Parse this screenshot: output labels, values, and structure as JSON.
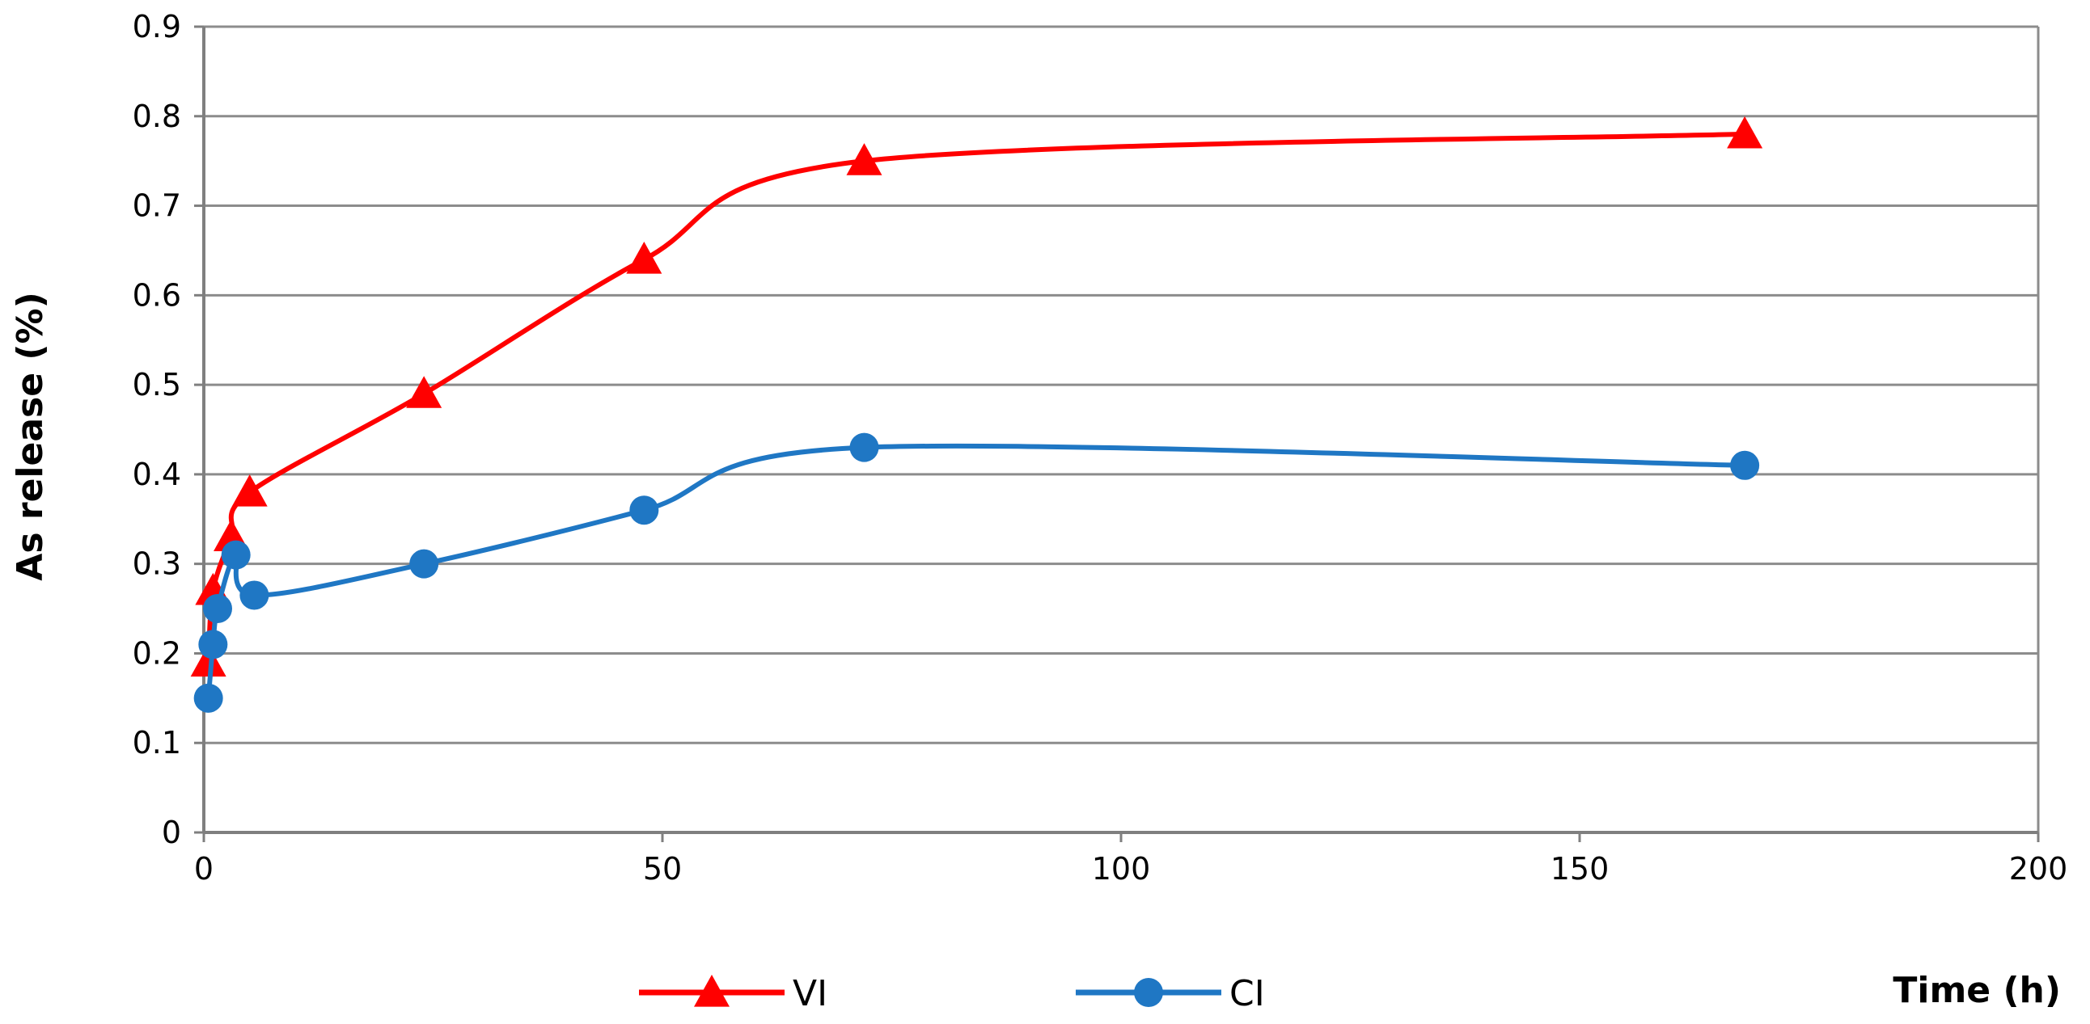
{
  "chart_data": {
    "type": "line",
    "title": "",
    "xlabel": "Time (h)",
    "ylabel": "As release (%)",
    "xlim": [
      0,
      200
    ],
    "ylim": [
      0,
      0.9
    ],
    "xticks": [
      "0",
      "50",
      "100",
      "150",
      "200"
    ],
    "yticks": [
      "0",
      "0.1",
      "0.2",
      "0.3",
      "0.4",
      "0.5",
      "0.6",
      "0.7",
      "0.8",
      "0.9"
    ],
    "grid": true,
    "legend_position": "bottom",
    "series": [
      {
        "name": "VI",
        "color": "#ff0000",
        "marker": "triangle",
        "x": [
          0.5,
          1,
          3,
          5,
          24,
          48,
          72,
          168
        ],
        "y": [
          0.19,
          0.27,
          0.33,
          0.38,
          0.49,
          0.64,
          0.75,
          0.78
        ]
      },
      {
        "name": "CI",
        "color": "#1f77c4",
        "marker": "circle",
        "x": [
          0.5,
          1,
          1.5,
          3.5,
          5.5,
          24,
          48,
          72,
          168
        ],
        "y": [
          0.15,
          0.21,
          0.25,
          0.31,
          0.265,
          0.3,
          0.36,
          0.43,
          0.41
        ]
      }
    ]
  }
}
